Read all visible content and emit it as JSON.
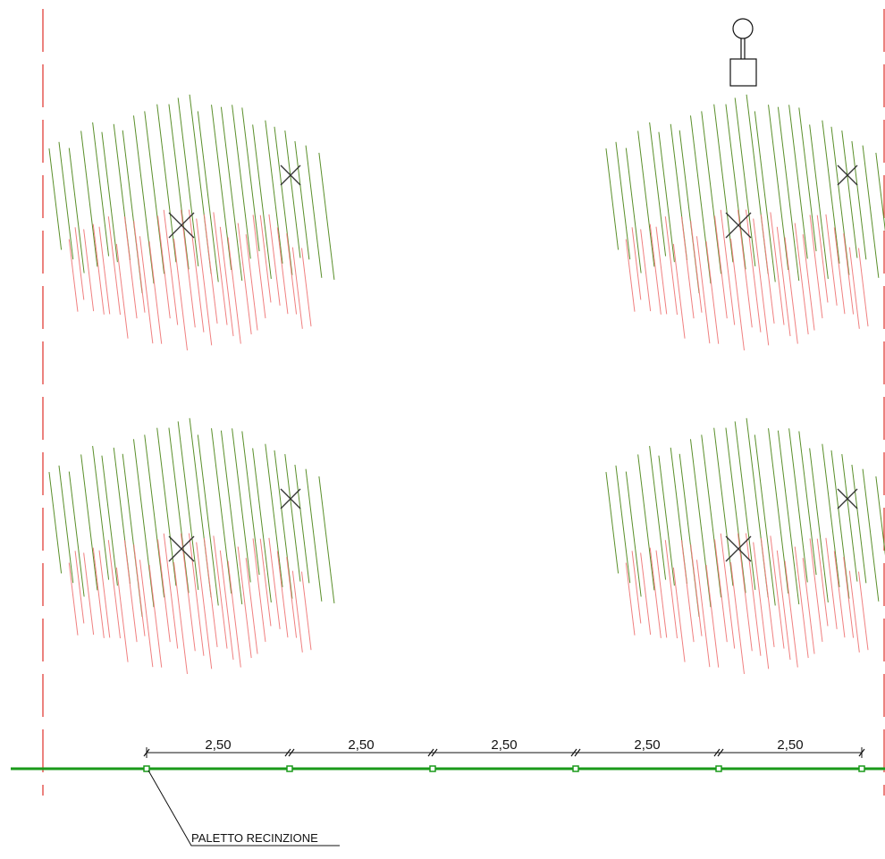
{
  "colors": {
    "axis_line": "#e0302a",
    "fence_line": "#1a9a1a",
    "fence_post": "#1a9a1a",
    "foliage_upper": "#5a8f2a",
    "foliage_lower": "#f08080",
    "tree_center": "#333333",
    "ink": "#111111"
  },
  "dimensions": {
    "spacing_labels": [
      "2,50",
      "2,50",
      "2,50",
      "2,50",
      "2,50"
    ]
  },
  "fence": {
    "post_label": "PALETTO RECINZIONE",
    "post_count": 6
  },
  "trees": {
    "count": 4,
    "icon": "tree-canopy-symbol"
  },
  "lamp": {
    "icon": "street-lamp-symbol"
  }
}
